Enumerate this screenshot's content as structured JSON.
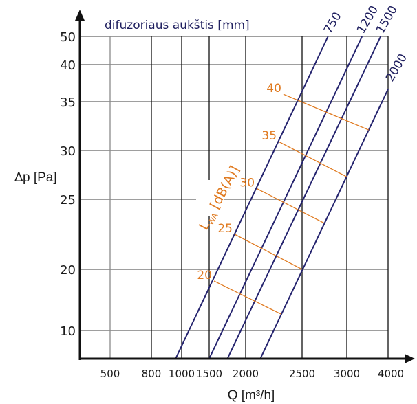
{
  "chart_data": {
    "type": "line",
    "title": "difuzoriaus aukštis [mm]",
    "xlabel": "Q [m³/h]",
    "ylabel": "∆p [Pa]",
    "x_scale": "non-linear (tick-based)",
    "y_scale": "non-linear (tick-based)",
    "x_ticks": [
      500,
      800,
      1000,
      1500,
      2000,
      2500,
      3000,
      4000
    ],
    "x_tick_labels": [
      "500",
      "800",
      "1000",
      "1500",
      "2000",
      "2500",
      "3000",
      "4000"
    ],
    "y_ticks": [
      10,
      20,
      25,
      30,
      35,
      40,
      50
    ],
    "y_tick_labels": [
      "10",
      "20",
      "25",
      "30",
      "35",
      "40",
      "50"
    ],
    "xlim": [
      0,
      4000
    ],
    "ylim": [
      5,
      50
    ],
    "grid": true,
    "series": [
      {
        "name": "750",
        "label": "750",
        "points": [
          [
            960,
            5
          ],
          [
            2790,
            50
          ]
        ]
      },
      {
        "name": "1200",
        "label": "1200",
        "points": [
          [
            1500,
            5
          ],
          [
            3370,
            50
          ]
        ]
      },
      {
        "name": "1500",
        "label": "1500",
        "points": [
          [
            1750,
            5
          ],
          [
            3820,
            50
          ]
        ]
      },
      {
        "name": "2000",
        "label": "2000",
        "points": [
          [
            2130,
            5
          ],
          [
            4000,
            36.7
          ]
        ]
      }
    ],
    "sound_level_axis_label": "LWA [dB(A)]",
    "sound_level_lines": [
      {
        "label": "40",
        "points": [
          [
            2335,
            36.0
          ],
          [
            3533,
            32.1
          ]
        ]
      },
      {
        "label": "35",
        "points": [
          [
            2293,
            30.9
          ],
          [
            3000,
            27.3
          ]
        ]
      },
      {
        "label": "30",
        "points": [
          [
            2098,
            26.1
          ],
          [
            2746,
            23.3
          ]
        ]
      },
      {
        "label": "25",
        "points": [
          [
            1849,
            22.5
          ],
          [
            2500,
            20.0
          ]
        ]
      },
      {
        "label": "20",
        "points": [
          [
            1566,
            18.1
          ],
          [
            2311,
            12.7
          ]
        ]
      }
    ],
    "colors": {
      "series": "#24236e",
      "sound_level": "#e07a20",
      "grid_horizontal": "#9e9e9e",
      "grid_vertical": "#111111",
      "axis": "#111111"
    }
  }
}
